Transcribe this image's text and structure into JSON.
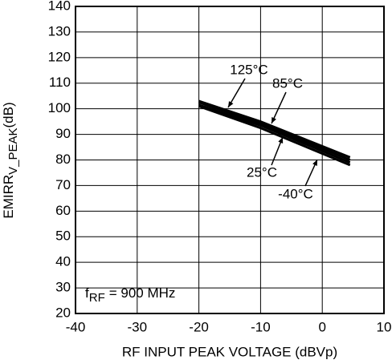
{
  "chart_data": {
    "type": "line",
    "xlabel": "RF INPUT PEAK VOLTAGE (dBVp)",
    "ylabel_parts": [
      "EMIRR",
      "V_PEAK",
      "(dB)"
    ],
    "annotation_parts": [
      "f",
      "RF",
      "= 900 MHz"
    ],
    "xlim": [
      -40,
      10
    ],
    "xticks": [
      -40,
      -30,
      -20,
      -10,
      0,
      10
    ],
    "ylim": [
      20,
      140
    ],
    "yticks": [
      20,
      30,
      40,
      50,
      60,
      70,
      80,
      90,
      100,
      110,
      120,
      130,
      140
    ],
    "grid": true,
    "series": [
      {
        "name": "125°C",
        "color": "#000000",
        "x": [
          -20,
          -10,
          4.5
        ],
        "values": [
          103,
          95,
          81
        ]
      },
      {
        "name": "85°C",
        "color": "#000000",
        "x": [
          -20,
          -10,
          4.5
        ],
        "values": [
          102.5,
          94.3,
          80
        ]
      },
      {
        "name": "25°C",
        "color": "#000000",
        "x": [
          -20,
          -10,
          4.5
        ],
        "values": [
          101.5,
          93.5,
          79
        ]
      },
      {
        "name": "-40°C",
        "color": "#000000",
        "x": [
          -20,
          -10,
          4.5
        ],
        "values": [
          101,
          92.5,
          78
        ]
      }
    ]
  }
}
